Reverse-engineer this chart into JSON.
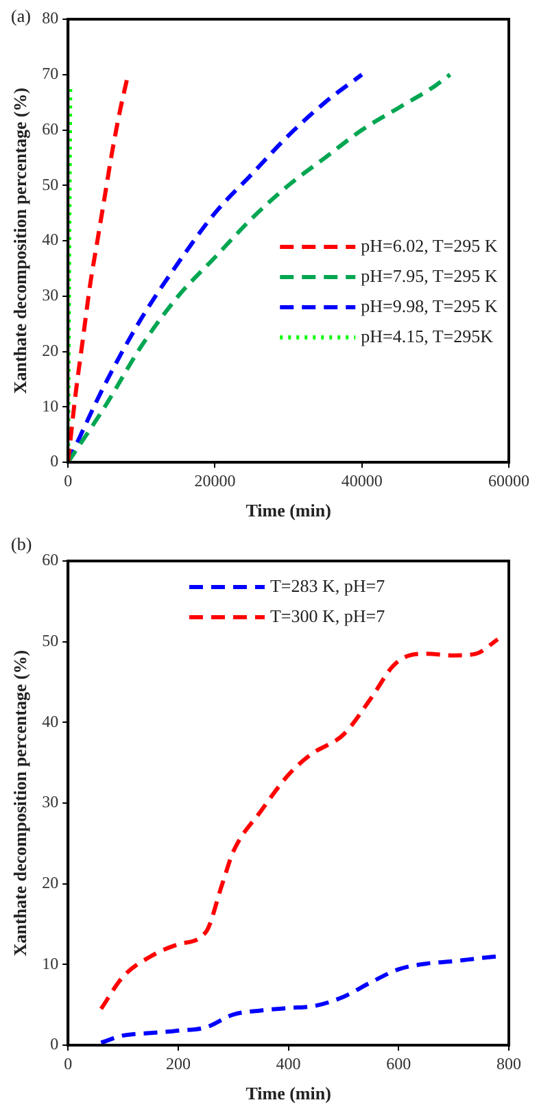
{
  "chart_data": [
    {
      "type": "line",
      "annotations": [
        "(a)"
      ],
      "xlabel": "Time (min)",
      "ylabel": "Xanthate decomposition percentage (%)",
      "xlim": [
        0,
        60000
      ],
      "xticks": [
        0,
        20000,
        40000,
        60000
      ],
      "ylim": [
        0,
        80
      ],
      "yticks": [
        0,
        10,
        20,
        30,
        40,
        50,
        60,
        70,
        80
      ],
      "grid": false,
      "legend": "bottom right",
      "marker": "none",
      "series": [
        {
          "name": "pH=6.02, T=295 K",
          "color": "#ff0000",
          "line_style": "dashed",
          "x": [
            0,
            1000,
            2000,
            3000,
            4000,
            5000,
            6000,
            7000,
            8000
          ],
          "values": [
            0,
            12,
            22,
            32,
            40,
            48,
            56,
            63,
            69
          ]
        },
        {
          "name": "pH=7.95, T=295 K",
          "color": "#00a651",
          "line_style": "dashed",
          "x": [
            0,
            5000,
            10000,
            15000,
            20000,
            25000,
            30000,
            35000,
            40000,
            45000,
            50000,
            52000
          ],
          "values": [
            0,
            10,
            21,
            30,
            37,
            44,
            50,
            55,
            60,
            64,
            68,
            70
          ]
        },
        {
          "name": "pH=9.98, T=295 K",
          "color": "#0000ff",
          "line_style": "dashed",
          "x": [
            0,
            5000,
            10000,
            15000,
            20000,
            25000,
            30000,
            35000,
            40000
          ],
          "values": [
            0,
            14,
            26,
            36,
            45,
            52,
            59,
            65,
            70
          ]
        },
        {
          "name": "pH=4.15, T=295K",
          "color": "#00ff00",
          "line_style": "dotted",
          "x": [
            0,
            100,
            200,
            300
          ],
          "values": [
            0,
            25,
            48,
            68
          ]
        }
      ]
    },
    {
      "type": "line",
      "annotations": [
        "(b)"
      ],
      "xlabel": "Time (min)",
      "ylabel": "Xanthate decomposition percentage (%)",
      "xlim": [
        0,
        800
      ],
      "xticks": [
        0,
        200,
        400,
        600,
        800
      ],
      "ylim": [
        0,
        60
      ],
      "yticks": [
        0,
        10,
        20,
        30,
        40,
        50,
        60
      ],
      "grid": false,
      "legend": "top",
      "marker": "none",
      "series": [
        {
          "name": "T=283 K, pH=7",
          "color": "#0000ff",
          "line_style": "dashed",
          "x": [
            60,
            100,
            150,
            200,
            250,
            300,
            350,
            400,
            450,
            500,
            550,
            600,
            650,
            700,
            750,
            780
          ],
          "values": [
            0.3,
            1.2,
            1.5,
            1.8,
            2.2,
            3.8,
            4.3,
            4.6,
            4.9,
            6,
            7.8,
            9.4,
            10.1,
            10.4,
            10.8,
            11
          ]
        },
        {
          "name": "T=300 K, pH=7",
          "color": "#ff0000",
          "line_style": "dashed",
          "x": [
            60,
            100,
            150,
            200,
            250,
            280,
            300,
            350,
            400,
            440,
            500,
            550,
            590,
            620,
            650,
            700,
            740,
            780
          ],
          "values": [
            4.5,
            8.5,
            11,
            12.5,
            14,
            20,
            24,
            29,
            33.5,
            36,
            38.5,
            43,
            47,
            48.3,
            48.5,
            48.3,
            48.5,
            50.3
          ]
        }
      ]
    }
  ]
}
